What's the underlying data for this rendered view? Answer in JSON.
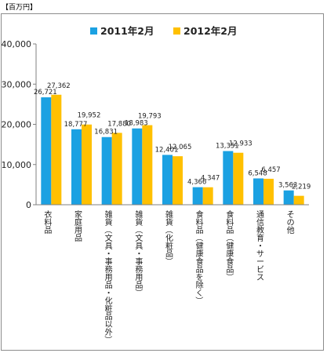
{
  "unit_label": "【百万円】",
  "chart_data": {
    "type": "bar",
    "title": "",
    "xlabel": "",
    "ylabel": "",
    "ylim": [
      0,
      40000
    ],
    "yticks": [
      "0",
      "10,000",
      "20,000",
      "30,000",
      "40,000"
    ],
    "legend_position": "top",
    "grid": false,
    "categories": [
      "衣料品",
      "家庭用品",
      "雑貨（文具・事務用品・化粧品以外）",
      "雑貨（文具・事務用品）",
      "雑貨（化粧品）",
      "食料品（健康食品を除く）",
      "食料品（健康食品）",
      "通信教育・サービス",
      "その他"
    ],
    "series": [
      {
        "name": "2011年2月",
        "color": "#1BA1E2",
        "values": [
          26721,
          18777,
          16831,
          18983,
          12401,
          4366,
          13351,
          6548,
          3563
        ],
        "labels": [
          "26,721",
          "18,777",
          "16,831",
          "18,983",
          "12,401",
          "4,366",
          "13,351",
          "6,548",
          "3,563"
        ]
      },
      {
        "name": "2012年2月",
        "color": "#FFC000",
        "values": [
          27362,
          19952,
          17880,
          19793,
          12065,
          4347,
          12933,
          6457,
          2219
        ],
        "labels": [
          "27,362",
          "19,952",
          "17,880",
          "19,793",
          "12,065",
          "4,347",
          "12,933",
          "6,457",
          "2,219"
        ]
      }
    ]
  }
}
